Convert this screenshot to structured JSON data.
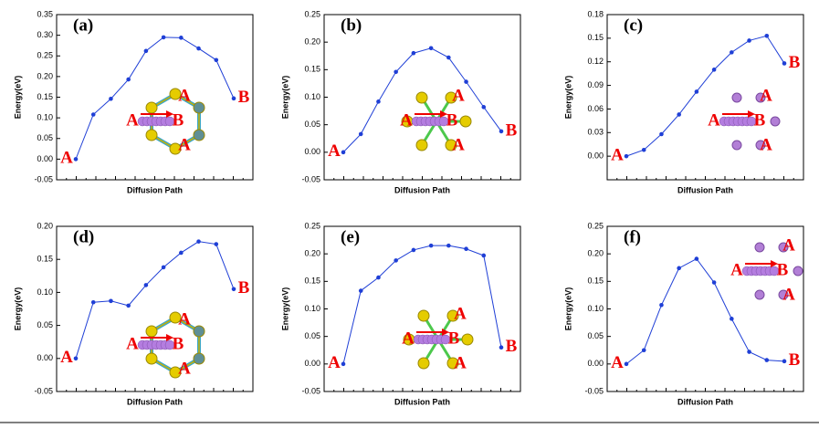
{
  "chart_data": [
    {
      "type": "line",
      "title": "(a)",
      "xlabel": "Diffusion Path",
      "ylabel": "Energy(eV)",
      "color": "#1f3fd6",
      "categories": [
        null,
        null,
        null,
        null,
        null,
        null,
        null,
        null,
        null,
        null
      ],
      "values": [
        0.0,
        0.108,
        0.146,
        0.193,
        0.262,
        0.295,
        0.294,
        0.268,
        0.24,
        0.147
      ],
      "ylim": [
        -0.05,
        0.35
      ],
      "yticks": [
        -0.05,
        {
          "value": 0,
          "label": "0.00"
        },
        0.05,
        {
          "value": 0.1,
          "label": "0.10"
        },
        0.15,
        {
          "value": 0.2,
          "label": "0.20"
        },
        0.25,
        {
          "value": 0.3,
          "label": "0.30"
        },
        0.35
      ],
      "annotations": [
        "A",
        "B",
        "A",
        "B",
        "A",
        "A"
      ]
    },
    {
      "type": "line",
      "title": "(b)",
      "xlabel": "Diffusion Path",
      "ylabel": "Energy(eV)",
      "color": "#1f3fd6",
      "categories": [
        null,
        null,
        null,
        null,
        null,
        null,
        null,
        null,
        null,
        null
      ],
      "values": [
        0.0,
        0.033,
        0.092,
        0.146,
        0.18,
        0.189,
        0.172,
        0.128,
        0.082,
        0.038
      ],
      "ylim": [
        -0.05,
        0.25
      ],
      "yticks": [
        -0.05,
        {
          "value": 0,
          "label": "0.00"
        },
        0.05,
        {
          "value": 0.1,
          "label": "0.10"
        },
        0.15,
        {
          "value": 0.2,
          "label": "0.20"
        },
        0.25
      ],
      "annotations": [
        "A",
        "B",
        "A",
        "B",
        "A",
        "A"
      ]
    },
    {
      "type": "line",
      "title": "(c)",
      "xlabel": "Diffusion Path",
      "ylabel": "Energy(eV)",
      "color": "#1f3fd6",
      "categories": [
        null,
        null,
        null,
        null,
        null,
        null,
        null,
        null,
        null,
        null
      ],
      "values": [
        0.0,
        0.008,
        0.028,
        0.053,
        0.082,
        0.11,
        0.132,
        0.147,
        0.153,
        0.118
      ],
      "ylim": [
        -0.03,
        0.18
      ],
      "yticks": [
        {
          "value": 0,
          "label": "0.00"
        },
        0.03,
        0.06,
        0.09,
        0.12,
        0.15,
        0.18
      ],
      "annotations": [
        "A",
        "B",
        "A",
        "B",
        "A",
        "A"
      ]
    },
    {
      "type": "line",
      "title": "(d)",
      "xlabel": "Diffusion Path",
      "ylabel": "Energy(eV)",
      "color": "#1f3fd6",
      "categories": [
        null,
        null,
        null,
        null,
        null,
        null,
        null,
        null,
        null,
        null
      ],
      "values": [
        0.0,
        0.085,
        0.087,
        0.08,
        0.111,
        0.138,
        0.16,
        0.177,
        0.173,
        0.105
      ],
      "ylim": [
        -0.05,
        0.2
      ],
      "yticks": [
        -0.05,
        {
          "value": 0,
          "label": "0.00"
        },
        0.05,
        {
          "value": 0.1,
          "label": "0.10"
        },
        0.15,
        {
          "value": 0.2,
          "label": "0.20"
        }
      ],
      "annotations": [
        "A",
        "B",
        "A",
        "B",
        "A",
        "A"
      ]
    },
    {
      "type": "line",
      "title": "(e)",
      "xlabel": "Diffusion Path",
      "ylabel": "Energy(eV)",
      "color": "#1f3fd6",
      "categories": [
        null,
        null,
        null,
        null,
        null,
        null,
        null,
        null,
        null,
        null
      ],
      "values": [
        0.0,
        0.133,
        0.157,
        0.188,
        0.207,
        0.215,
        0.215,
        0.209,
        0.197,
        0.03
      ],
      "ylim": [
        -0.05,
        0.25
      ],
      "yticks": [
        -0.05,
        {
          "value": 0,
          "label": "0.00"
        },
        0.05,
        {
          "value": 0.1,
          "label": "0.10"
        },
        0.15,
        {
          "value": 0.2,
          "label": "0.20"
        },
        0.25
      ],
      "annotations": [
        "A",
        "B",
        "A",
        "B",
        "A",
        "A"
      ]
    },
    {
      "type": "line",
      "title": "(f)",
      "xlabel": "Diffusion Path",
      "ylabel": "Energy(eV)",
      "color": "#1f3fd6",
      "categories": [
        null,
        null,
        null,
        null,
        null,
        null,
        null,
        null,
        null,
        null
      ],
      "values": [
        0.0,
        0.025,
        0.107,
        0.174,
        0.191,
        0.148,
        0.082,
        0.022,
        0.007,
        0.005
      ],
      "ylim": [
        -0.05,
        0.25
      ],
      "yticks": [
        -0.05,
        {
          "value": 0,
          "label": "0.00"
        },
        0.05,
        {
          "value": 0.1,
          "label": "0.10"
        },
        0.15,
        {
          "value": 0.2,
          "label": "0.20"
        },
        0.25
      ],
      "annotations": [
        "A",
        "B",
        "A",
        "B",
        "A",
        "A"
      ]
    }
  ]
}
